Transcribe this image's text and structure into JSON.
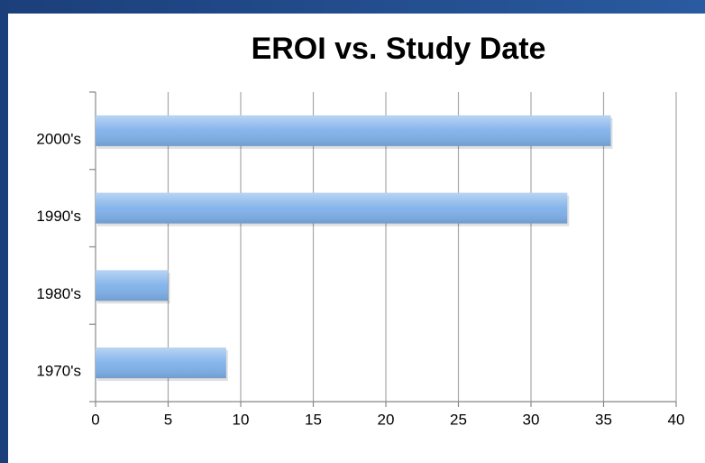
{
  "chart_data": {
    "type": "bar",
    "orientation": "horizontal",
    "title": "EROI vs. Study Date",
    "categories": [
      "2000's",
      "1990's",
      "1980's",
      "1970's"
    ],
    "values": [
      35.5,
      32.5,
      5,
      9
    ],
    "color": "#7fb1ea",
    "xlim": [
      0,
      40
    ],
    "xticks": [
      0,
      5,
      10,
      15,
      20,
      25,
      30,
      35,
      40
    ],
    "grid": true
  }
}
